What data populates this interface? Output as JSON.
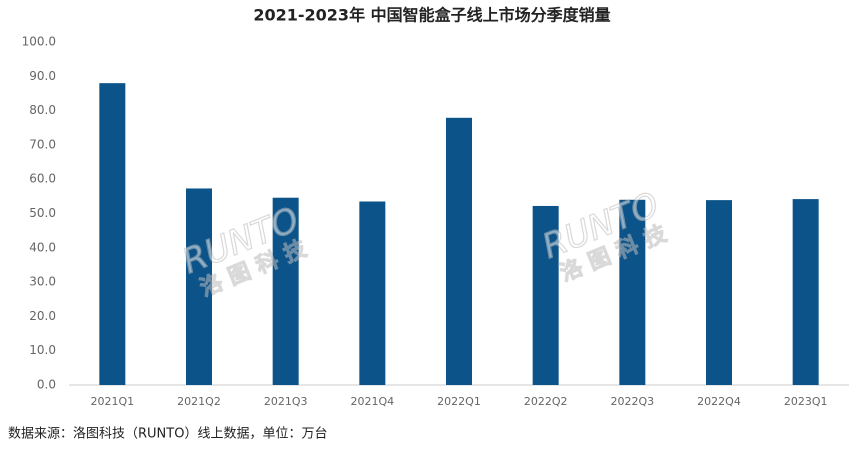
{
  "chart_data": {
    "type": "bar",
    "title": "2021-2023年 中国智能盒子线上市场分季度销量",
    "categories": [
      "2021Q1",
      "2021Q2",
      "2021Q3",
      "2021Q4",
      "2022Q1",
      "2022Q2",
      "2022Q3",
      "2022Q4",
      "2023Q1"
    ],
    "values": [
      88.0,
      57.3,
      54.6,
      53.5,
      77.9,
      52.2,
      54.0,
      53.9,
      54.2
    ],
    "color": "#0b5389",
    "ylim": [
      0,
      100
    ],
    "yticks": [
      {
        "value": 0,
        "label": "0.0"
      },
      {
        "value": 10,
        "label": "10.0"
      },
      {
        "value": 20,
        "label": "20.0"
      },
      {
        "value": 30,
        "label": "30.0"
      },
      {
        "value": 40,
        "label": "40.0"
      },
      {
        "value": 50,
        "label": "50.0"
      },
      {
        "value": 60,
        "label": "60.0"
      },
      {
        "value": 70,
        "label": "70.0"
      },
      {
        "value": 80,
        "label": "80.0"
      },
      {
        "value": 90,
        "label": "90.0"
      },
      {
        "value": 100,
        "label": "100.0"
      }
    ],
    "grid": false,
    "source": "数据来源：洛图科技（RUNTO）线上数据，单位：万台",
    "watermark": {
      "brand": "RUNTO",
      "name": "洛图科技"
    }
  }
}
